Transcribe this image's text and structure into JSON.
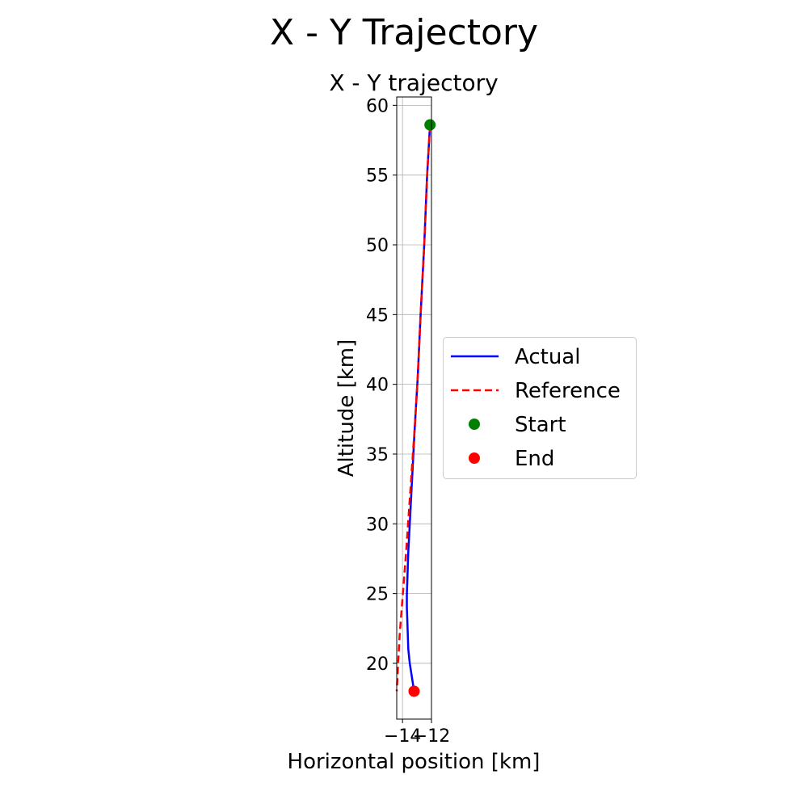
{
  "figure": {
    "suptitle": "X - Y Trajectory"
  },
  "chart_data": {
    "type": "line",
    "title": "X - Y trajectory",
    "xlabel": "Horizontal position [km]",
    "ylabel": "Altitude [km]",
    "xlim": [
      -14.4,
      -12.0
    ],
    "ylim": [
      16.0,
      60.6
    ],
    "xticks": [
      -14,
      -12
    ],
    "xtick_labels": [
      "−14",
      "−12"
    ],
    "yticks": [
      20,
      25,
      30,
      35,
      40,
      45,
      50,
      55,
      60
    ],
    "ytick_labels": [
      "20",
      "25",
      "30",
      "35",
      "40",
      "45",
      "50",
      "55",
      "60"
    ],
    "grid": true,
    "legend_position": "center-right outside",
    "series": [
      {
        "name": "Actual",
        "style": "solid",
        "color": "#0000ff",
        "x": [
          -12.1,
          -12.3,
          -12.5,
          -12.75,
          -12.95,
          -13.15,
          -13.3,
          -13.4,
          -13.5,
          -13.6,
          -13.65,
          -13.7,
          -13.7,
          -13.65,
          -13.6,
          -13.5,
          -13.35,
          -13.2
        ],
        "y": [
          58.6,
          55,
          50,
          45,
          40.5,
          37,
          34,
          32,
          30,
          28,
          26.5,
          25,
          24,
          22.5,
          21,
          20,
          19,
          18.0
        ]
      },
      {
        "name": "Reference",
        "style": "dashed",
        "color": "#ff0000",
        "x": [
          -12.1,
          -12.3,
          -12.5,
          -12.75,
          -12.95,
          -13.15,
          -13.35,
          -13.55,
          -13.75,
          -13.9,
          -14.05,
          -14.2,
          -14.3,
          -14.4
        ],
        "y": [
          58.6,
          55,
          50,
          45,
          40.5,
          37,
          34,
          31,
          28,
          26,
          24,
          22,
          20,
          18.0
        ]
      }
    ],
    "markers": [
      {
        "name": "Start",
        "color": "#008000",
        "x": -12.1,
        "y": 58.6
      },
      {
        "name": "End",
        "color": "#ff0000",
        "x": -13.2,
        "y": 18.0
      }
    ]
  }
}
